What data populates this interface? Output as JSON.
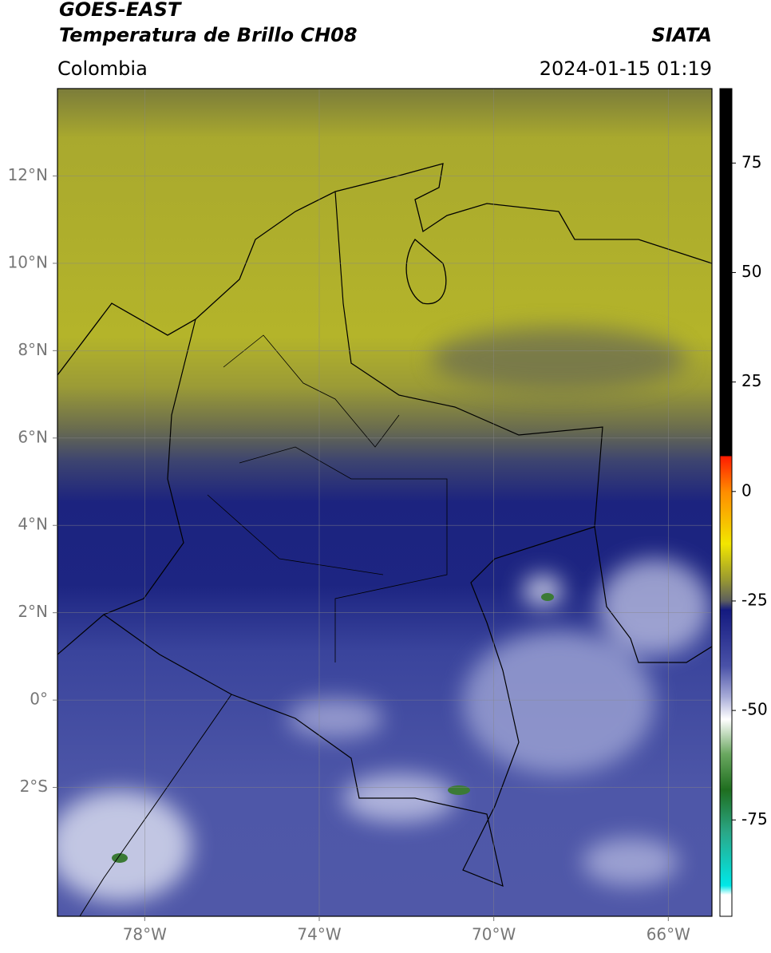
{
  "header": {
    "title": "GOES-EAST",
    "subtitle": "Temperatura de Brillo CH08",
    "source": "SIATA",
    "region": "Colombia",
    "datetime": "2024-01-15 01:19"
  },
  "map": {
    "xlim": [
      -80,
      -65
    ],
    "ylim": [
      -4.95,
      14
    ],
    "xticks": [
      {
        "value": -78,
        "label": "78°W"
      },
      {
        "value": -74,
        "label": "74°W"
      },
      {
        "value": -70,
        "label": "70°W"
      },
      {
        "value": -66,
        "label": "66°W"
      }
    ],
    "yticks": [
      {
        "value": 12,
        "label": "12°N"
      },
      {
        "value": 10,
        "label": "10°N"
      },
      {
        "value": 8,
        "label": "8°N"
      },
      {
        "value": 6,
        "label": "6°N"
      },
      {
        "value": 4,
        "label": "4°N"
      },
      {
        "value": 2,
        "label": "2°N"
      },
      {
        "value": 0,
        "label": "0°"
      },
      {
        "value": -2,
        "label": "2°S"
      }
    ],
    "grid": true
  },
  "colorbar": {
    "lim": [
      -97,
      92
    ],
    "ticks": [
      75,
      50,
      25,
      0,
      -25,
      -50,
      -75
    ]
  }
}
